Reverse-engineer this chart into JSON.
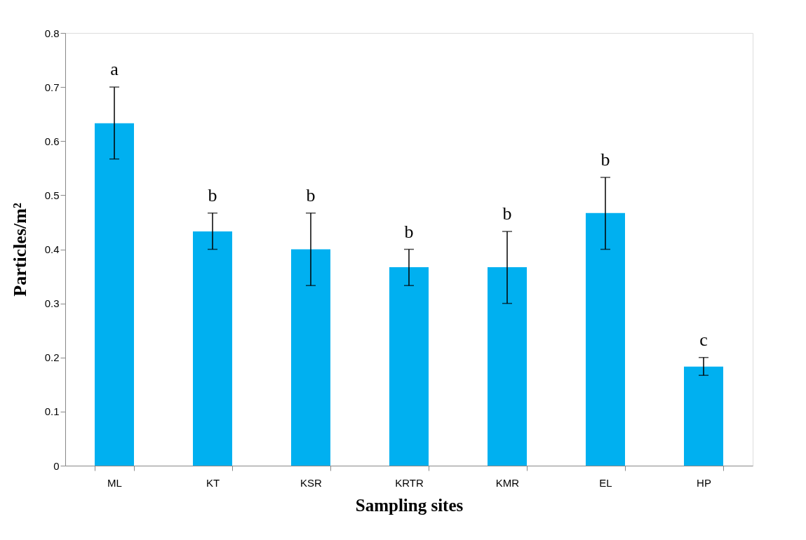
{
  "chart_data": {
    "type": "bar",
    "xlabel": "Sampling sites",
    "ylabel": "Particles/m²",
    "categories": [
      "ML",
      "KT",
      "KSR",
      "KRTR",
      "KMR",
      "EL",
      "HP"
    ],
    "values": [
      0.633,
      0.433,
      0.4,
      0.367,
      0.367,
      0.467,
      0.183
    ],
    "errors": [
      [
        0.567,
        0.7
      ],
      [
        0.4,
        0.467
      ],
      [
        0.333,
        0.467
      ],
      [
        0.333,
        0.4
      ],
      [
        0.3,
        0.433
      ],
      [
        0.4,
        0.533
      ],
      [
        0.167,
        0.2
      ]
    ],
    "color": "#00b0f0",
    "ylim": [
      0,
      0.8
    ],
    "yticks": [
      0,
      0.1,
      0.2,
      0.3,
      0.4,
      0.5,
      0.6,
      0.7,
      0.8
    ],
    "annotations": [
      {
        "text": "a",
        "x": "ML",
        "y": 0.7
      },
      {
        "text": "b",
        "x": "KT",
        "y": 0.467
      },
      {
        "text": "b",
        "x": "KSR",
        "y": 0.467
      },
      {
        "text": "b",
        "x": "KRTR",
        "y": 0.4
      },
      {
        "text": "b",
        "x": "KMR",
        "y": 0.433
      },
      {
        "text": "b",
        "x": "EL",
        "y": 0.533
      },
      {
        "text": "c",
        "x": "HP",
        "y": 0.2
      }
    ],
    "grid": false
  }
}
